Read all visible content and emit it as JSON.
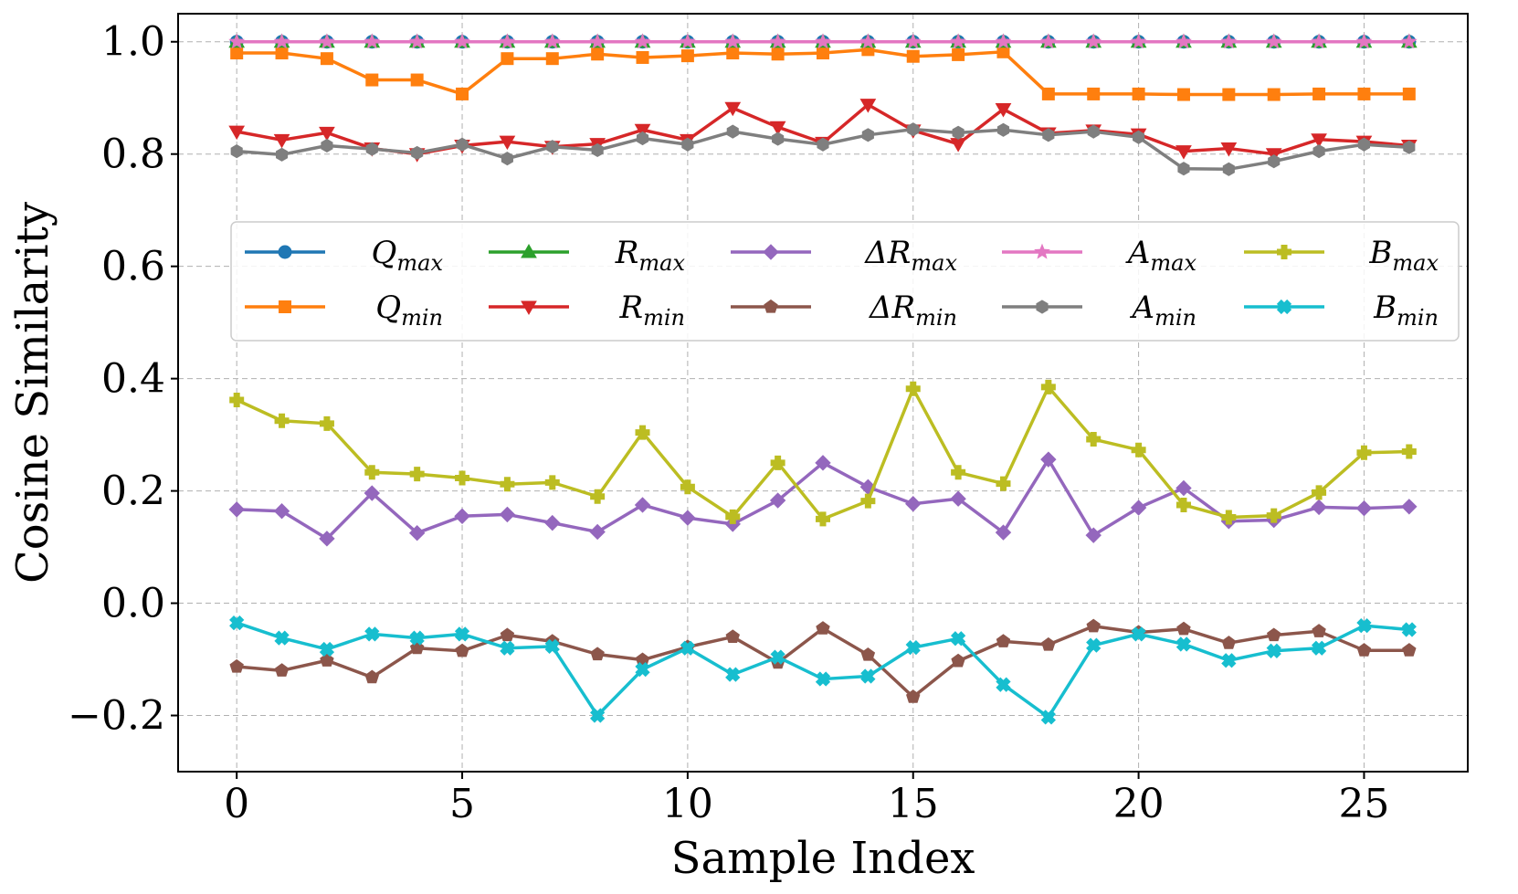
{
  "chart_data": {
    "type": "line",
    "title": "",
    "xlabel": "Sample Index",
    "ylabel": "Cosine Similarity",
    "xlim": [
      -1.3,
      27.3
    ],
    "ylim": [
      -0.3,
      1.05
    ],
    "xticks": [
      0,
      5,
      10,
      15,
      20,
      25
    ],
    "xtick_labels": [
      "0",
      "5",
      "10",
      "15",
      "20",
      "25"
    ],
    "yticks": [
      -0.2,
      0.0,
      0.2,
      0.4,
      0.6,
      0.8,
      1.0
    ],
    "ytick_labels": [
      "−0.2",
      "0.0",
      "0.2",
      "0.4",
      "0.6",
      "0.8",
      "1.0"
    ],
    "grid": true,
    "legend_position": "upper-center, 2 rows x 5 columns",
    "x": [
      0,
      1,
      2,
      3,
      4,
      5,
      6,
      7,
      8,
      9,
      10,
      11,
      12,
      13,
      14,
      15,
      16,
      17,
      18,
      19,
      20,
      21,
      22,
      23,
      24,
      25,
      26
    ],
    "series": [
      {
        "name": "Q_max",
        "base": "Q",
        "sub": "max",
        "color": "#1f77b4",
        "marker": "circle",
        "values": [
          1,
          1,
          1,
          1,
          1,
          1,
          1,
          1,
          1,
          1,
          1,
          1,
          1,
          1,
          1,
          1,
          1,
          1,
          1,
          1,
          1,
          1,
          1,
          1,
          1,
          1,
          1
        ]
      },
      {
        "name": "Q_min",
        "base": "Q",
        "sub": "min",
        "color": "#ff7f0e",
        "marker": "square",
        "values": [
          0.98,
          0.98,
          0.97,
          0.932,
          0.932,
          0.907,
          0.97,
          0.97,
          0.978,
          0.972,
          0.975,
          0.98,
          0.978,
          0.98,
          0.986,
          0.974,
          0.977,
          0.982,
          0.907,
          0.907,
          0.907,
          0.906,
          0.906,
          0.906,
          0.907,
          0.907,
          0.907
        ]
      },
      {
        "name": "R_max",
        "base": "R",
        "sub": "max",
        "color": "#2ca02c",
        "marker": "triangle-up",
        "values": [
          1,
          1,
          1,
          1,
          1,
          1,
          1,
          1,
          1,
          1,
          1,
          1,
          1,
          1,
          1,
          1,
          1,
          1,
          1,
          1,
          1,
          1,
          1,
          1,
          1,
          1,
          1
        ]
      },
      {
        "name": "R_min",
        "base": "R",
        "sub": "min",
        "color": "#d62728",
        "marker": "triangle-down",
        "values": [
          0.84,
          0.825,
          0.838,
          0.81,
          0.8,
          0.815,
          0.822,
          0.813,
          0.818,
          0.843,
          0.825,
          0.882,
          0.848,
          0.82,
          0.888,
          0.842,
          0.818,
          0.88,
          0.837,
          0.842,
          0.835,
          0.805,
          0.81,
          0.8,
          0.826,
          0.822,
          0.815
        ]
      },
      {
        "name": "ΔR_max",
        "base": "ΔR",
        "sub": "max",
        "color": "#9467bd",
        "marker": "diamond",
        "values": [
          0.167,
          0.164,
          0.115,
          0.196,
          0.125,
          0.155,
          0.158,
          0.143,
          0.127,
          0.175,
          0.152,
          0.141,
          0.183,
          0.25,
          0.207,
          0.177,
          0.186,
          0.126,
          0.256,
          0.121,
          0.17,
          0.205,
          0.146,
          0.148,
          0.171,
          0.169,
          0.172
        ]
      },
      {
        "name": "ΔR_min",
        "base": "ΔR",
        "sub": "min",
        "color": "#8c564b",
        "marker": "pentagon",
        "values": [
          -0.113,
          -0.12,
          -0.102,
          -0.132,
          -0.08,
          -0.085,
          -0.057,
          -0.068,
          -0.091,
          -0.101,
          -0.078,
          -0.06,
          -0.106,
          -0.045,
          -0.092,
          -0.167,
          -0.103,
          -0.068,
          -0.074,
          -0.041,
          -0.052,
          -0.046,
          -0.071,
          -0.057,
          -0.05,
          -0.084,
          -0.084
        ]
      },
      {
        "name": "A_max",
        "base": "A",
        "sub": "max",
        "color": "#e377c2",
        "marker": "star",
        "values": [
          1,
          1,
          1,
          1,
          1,
          1,
          1,
          1,
          1,
          1,
          1,
          1,
          1,
          1,
          1,
          1,
          1,
          1,
          1,
          1,
          1,
          1,
          1,
          1,
          1,
          1,
          1
        ]
      },
      {
        "name": "A_min",
        "base": "A",
        "sub": "min",
        "color": "#7f7f7f",
        "marker": "hexagon",
        "values": [
          0.805,
          0.799,
          0.815,
          0.809,
          0.802,
          0.817,
          0.792,
          0.813,
          0.807,
          0.828,
          0.817,
          0.84,
          0.827,
          0.817,
          0.834,
          0.844,
          0.838,
          0.843,
          0.834,
          0.84,
          0.83,
          0.774,
          0.773,
          0.787,
          0.805,
          0.817,
          0.812
        ]
      },
      {
        "name": "B_max",
        "base": "B",
        "sub": "max",
        "color": "#bcbd22",
        "marker": "plus",
        "values": [
          0.362,
          0.325,
          0.32,
          0.233,
          0.23,
          0.223,
          0.212,
          0.215,
          0.19,
          0.304,
          0.207,
          0.154,
          0.25,
          0.15,
          0.182,
          0.382,
          0.233,
          0.213,
          0.385,
          0.292,
          0.273,
          0.175,
          0.153,
          0.156,
          0.197,
          0.268,
          0.27
        ]
      },
      {
        "name": "B_min",
        "base": "B",
        "sub": "min",
        "color": "#17becf",
        "marker": "x",
        "values": [
          -0.035,
          -0.062,
          -0.082,
          -0.055,
          -0.062,
          -0.055,
          -0.08,
          -0.077,
          -0.2,
          -0.118,
          -0.08,
          -0.127,
          -0.096,
          -0.135,
          -0.13,
          -0.079,
          -0.063,
          -0.145,
          -0.203,
          -0.075,
          -0.055,
          -0.073,
          -0.102,
          -0.085,
          -0.08,
          -0.04,
          -0.047
        ]
      }
    ]
  }
}
